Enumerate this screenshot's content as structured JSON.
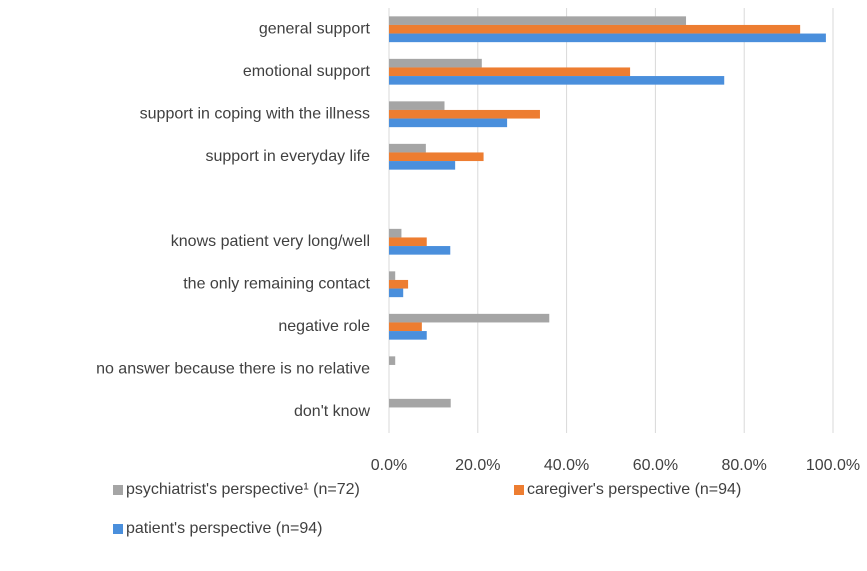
{
  "chart_data": {
    "type": "hbar",
    "categories": [
      "general support",
      "emotional support",
      "support in coping with the illness",
      "support in everyday life",
      null,
      "knows patient very long/well",
      "the only remaining contact",
      "negative role",
      "no answer because there is no relative",
      "don't know"
    ],
    "series": [
      {
        "name": "psychiatrist's perspective¹ (n=72)",
        "color": "#a5a5a5",
        "values": [
          66.9,
          20.9,
          12.5,
          8.3,
          null,
          2.8,
          1.4,
          36.1,
          1.4,
          13.9
        ]
      },
      {
        "name": "caregiver's perspective (n=94)",
        "color": "#ed7d31",
        "values": [
          92.6,
          54.3,
          34.0,
          21.3,
          null,
          8.5,
          4.3,
          7.4,
          0,
          0
        ]
      },
      {
        "name": "patient's perspective (n=94)",
        "color": "#4a8fdc",
        "values": [
          98.4,
          75.5,
          26.6,
          14.9,
          null,
          13.8,
          3.2,
          8.5,
          0,
          0
        ]
      }
    ],
    "xlim": [
      0,
      100
    ],
    "xticks": [
      {
        "value": 0,
        "label": "0.0%"
      },
      {
        "value": 20,
        "label": "20.0%"
      },
      {
        "value": 40,
        "label": "40.0%"
      },
      {
        "value": 60,
        "label": "60.0%"
      },
      {
        "value": 80,
        "label": "80.0%"
      },
      {
        "value": 100,
        "label": "100.0%"
      }
    ],
    "grid": true,
    "legend": "bottom"
  }
}
